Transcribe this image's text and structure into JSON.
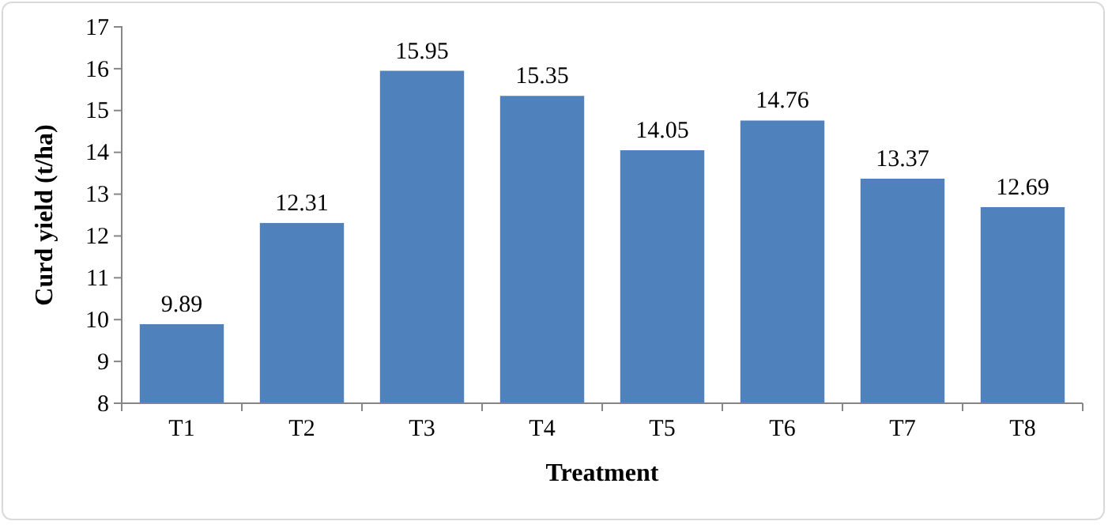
{
  "chart_data": {
    "type": "bar",
    "xlabel": "Treatment",
    "ylabel": "Curd yield (t/ha)",
    "categories": [
      "T1",
      "T2",
      "T3",
      "T4",
      "T5",
      "T6",
      "T7",
      "T8"
    ],
    "values": [
      9.89,
      12.31,
      15.95,
      15.35,
      14.05,
      14.76,
      13.37,
      12.69
    ],
    "color": "#4f81bd",
    "ylim": [
      8,
      17
    ],
    "yticks": [
      8,
      9,
      10,
      11,
      12,
      13,
      14,
      15,
      16,
      17
    ],
    "grid": false,
    "data_labels": true
  }
}
